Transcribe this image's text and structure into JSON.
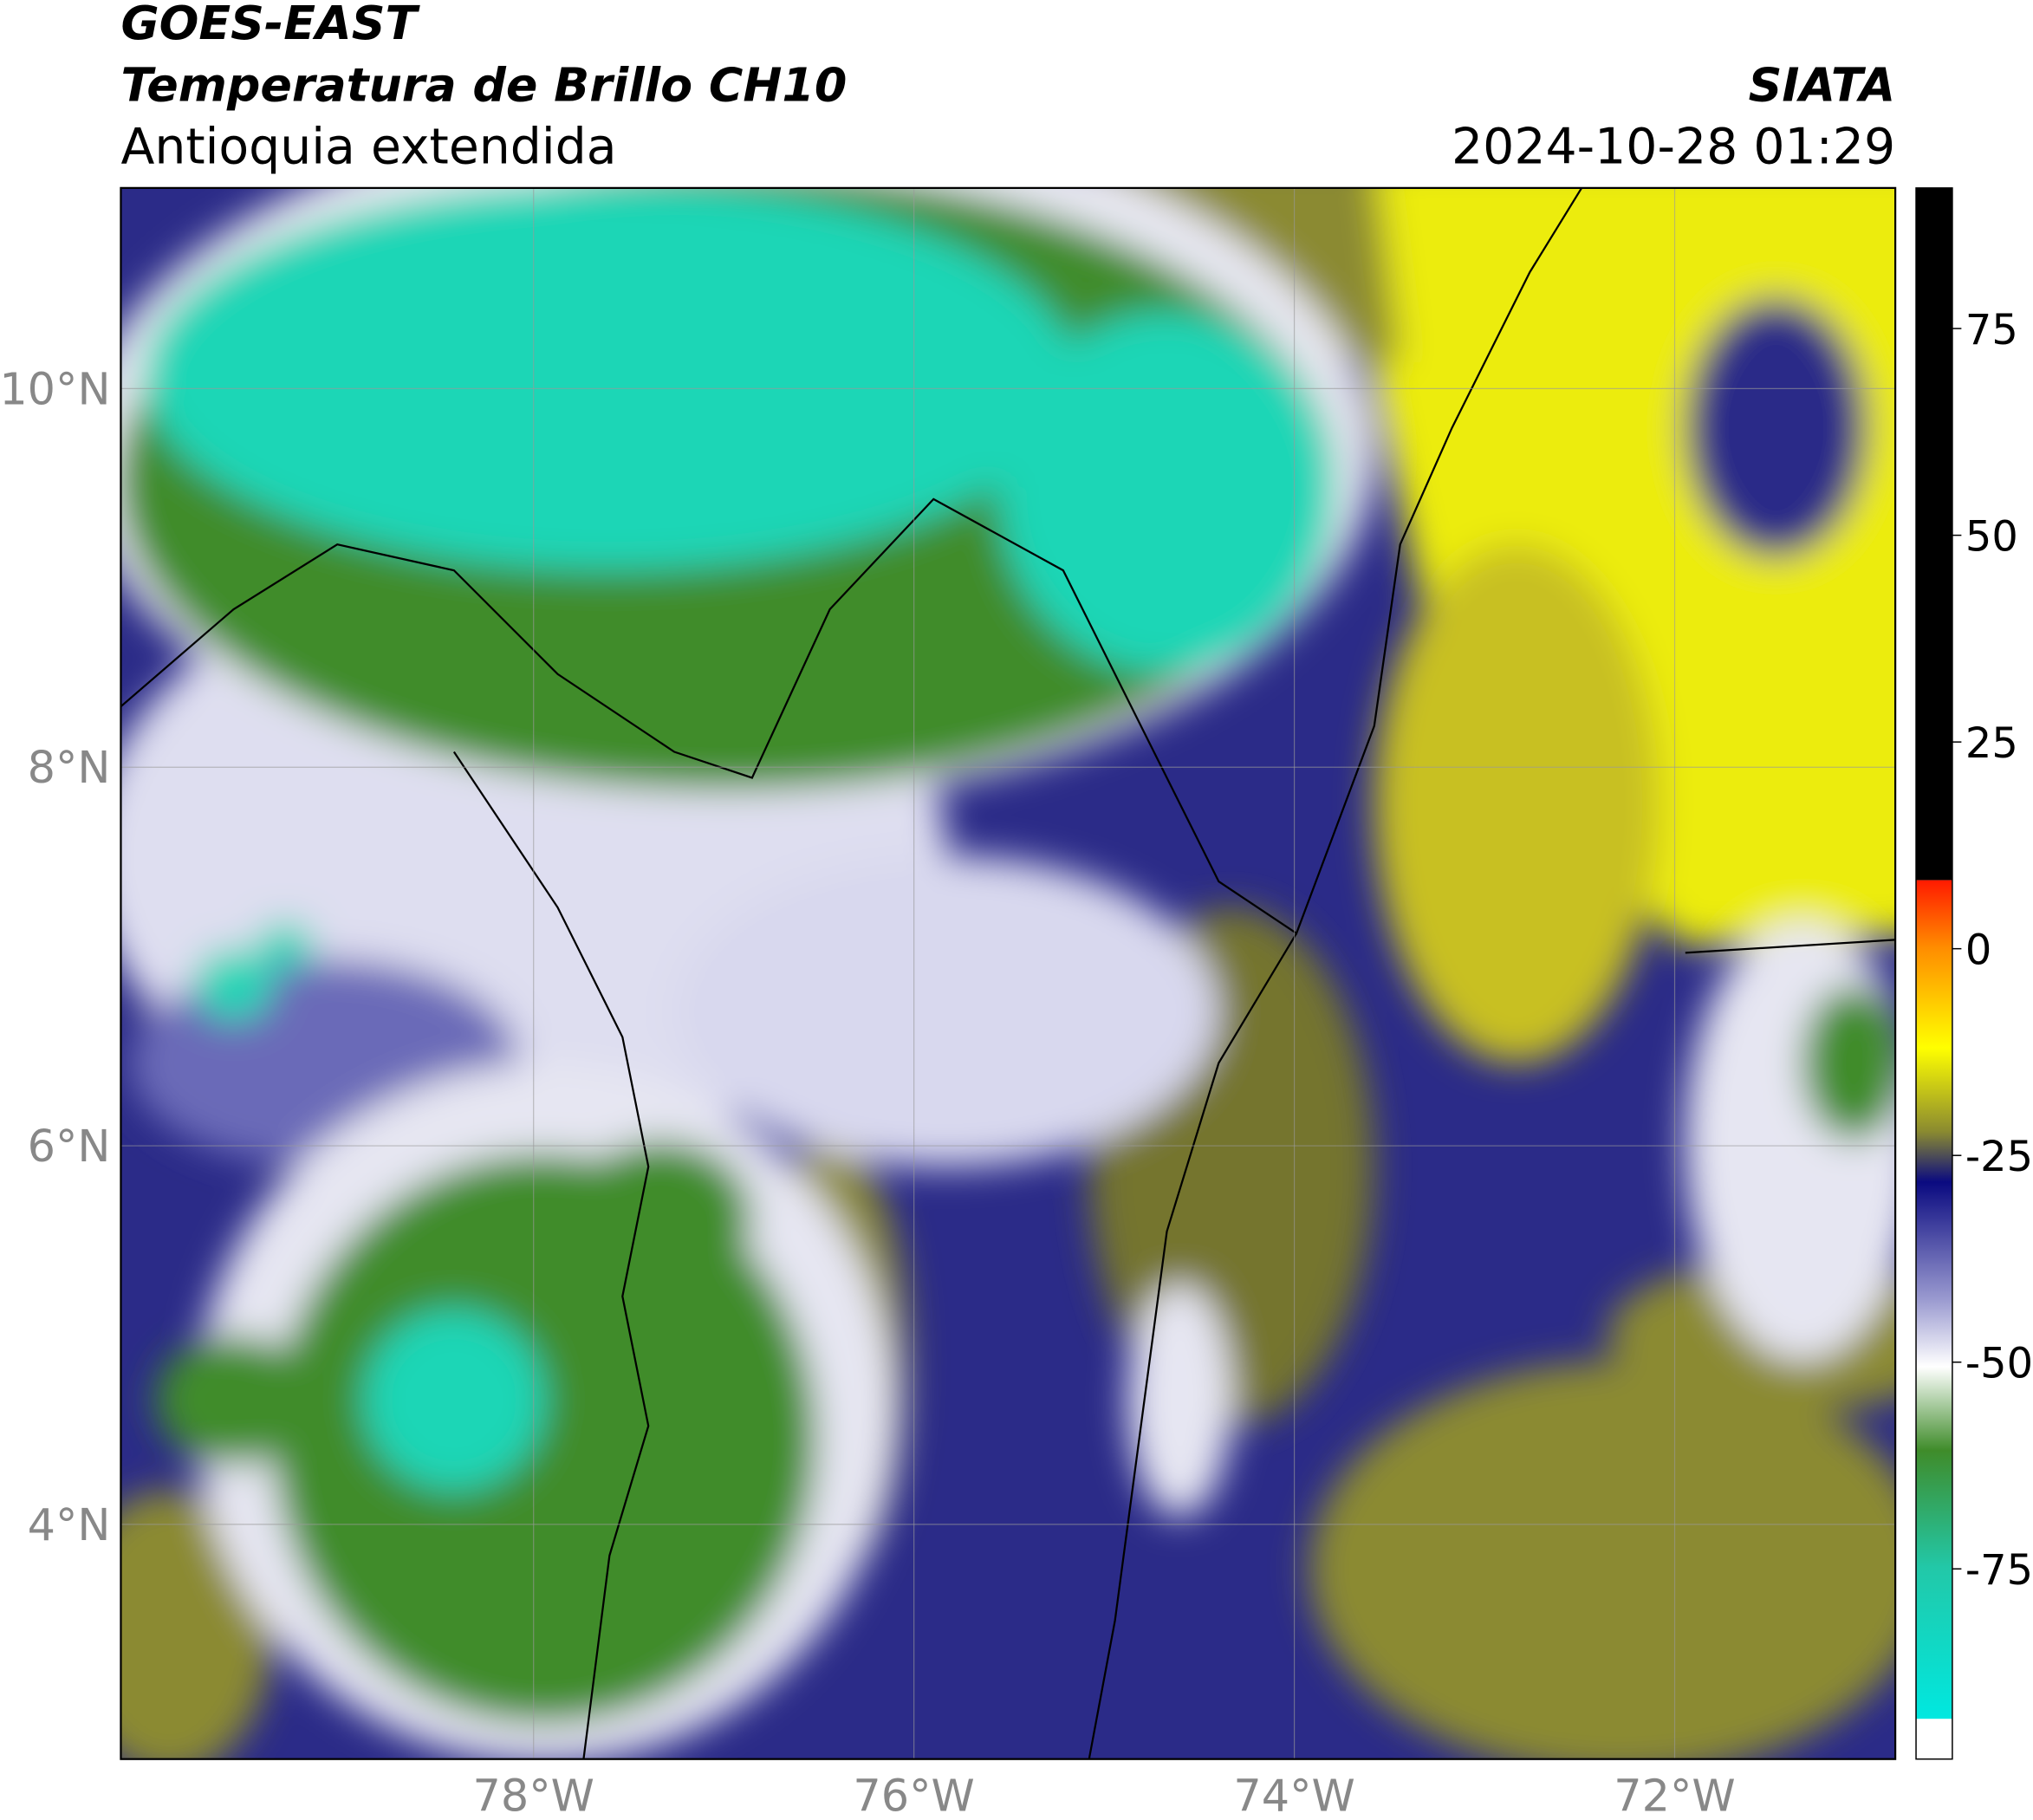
{
  "header": {
    "title": "GOES-EAST",
    "subtitle": "Temperatura de Brillo CH10",
    "region": "Antioquia extendida",
    "source": "SIATA",
    "datetime": "2024-10-28 01:29"
  },
  "map": {
    "lon_range": [
      -80.17,
      -70.84
    ],
    "lat_range": [
      2.76,
      11.06
    ],
    "lat_ticks": [
      {
        "value": 10,
        "label": "10°N"
      },
      {
        "value": 8,
        "label": "8°N"
      },
      {
        "value": 6,
        "label": "6°N"
      },
      {
        "value": 4,
        "label": "4°N"
      }
    ],
    "lon_ticks": [
      {
        "value": -78,
        "label": "78°W"
      },
      {
        "value": -76,
        "label": "76°W"
      },
      {
        "value": -74,
        "label": "74°W"
      },
      {
        "value": -72,
        "label": "72°W"
      }
    ]
  },
  "colorbar": {
    "range": [
      -98,
      92
    ],
    "ticks": [
      75,
      50,
      25,
      0,
      -25,
      -50,
      -75
    ]
  }
}
